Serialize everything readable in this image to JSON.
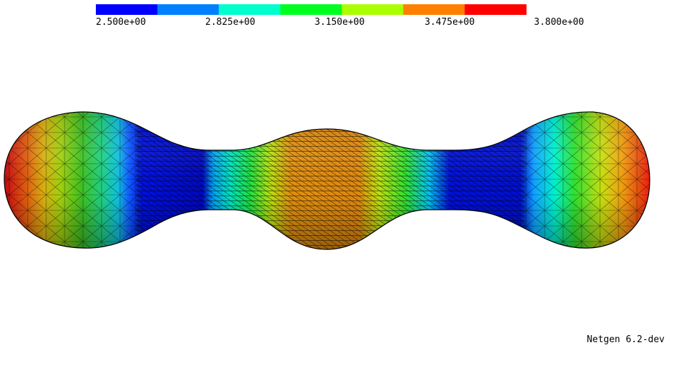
{
  "colorbar": {
    "labels": [
      "2.500e+00",
      "2.825e+00",
      "3.150e+00",
      "3.475e+00",
      "3.800e+00"
    ],
    "colors": [
      "#0000ff",
      "#0080ff",
      "#00ffcc",
      "#00ff20",
      "#aaff00",
      "#ff8000",
      "#ff0000"
    ]
  },
  "app": {
    "version": "Netgen 6.2-dev"
  },
  "surface": {
    "shape": "dumbbell-mesh",
    "band_colors": [
      "#d01818",
      "#e07010",
      "#d8c010",
      "#60c010",
      "#20c060",
      "#10a0e0",
      "#0020d0",
      "#0018b0",
      "#00c0f0",
      "#40d040",
      "#c8d010",
      "#e88818"
    ]
  }
}
